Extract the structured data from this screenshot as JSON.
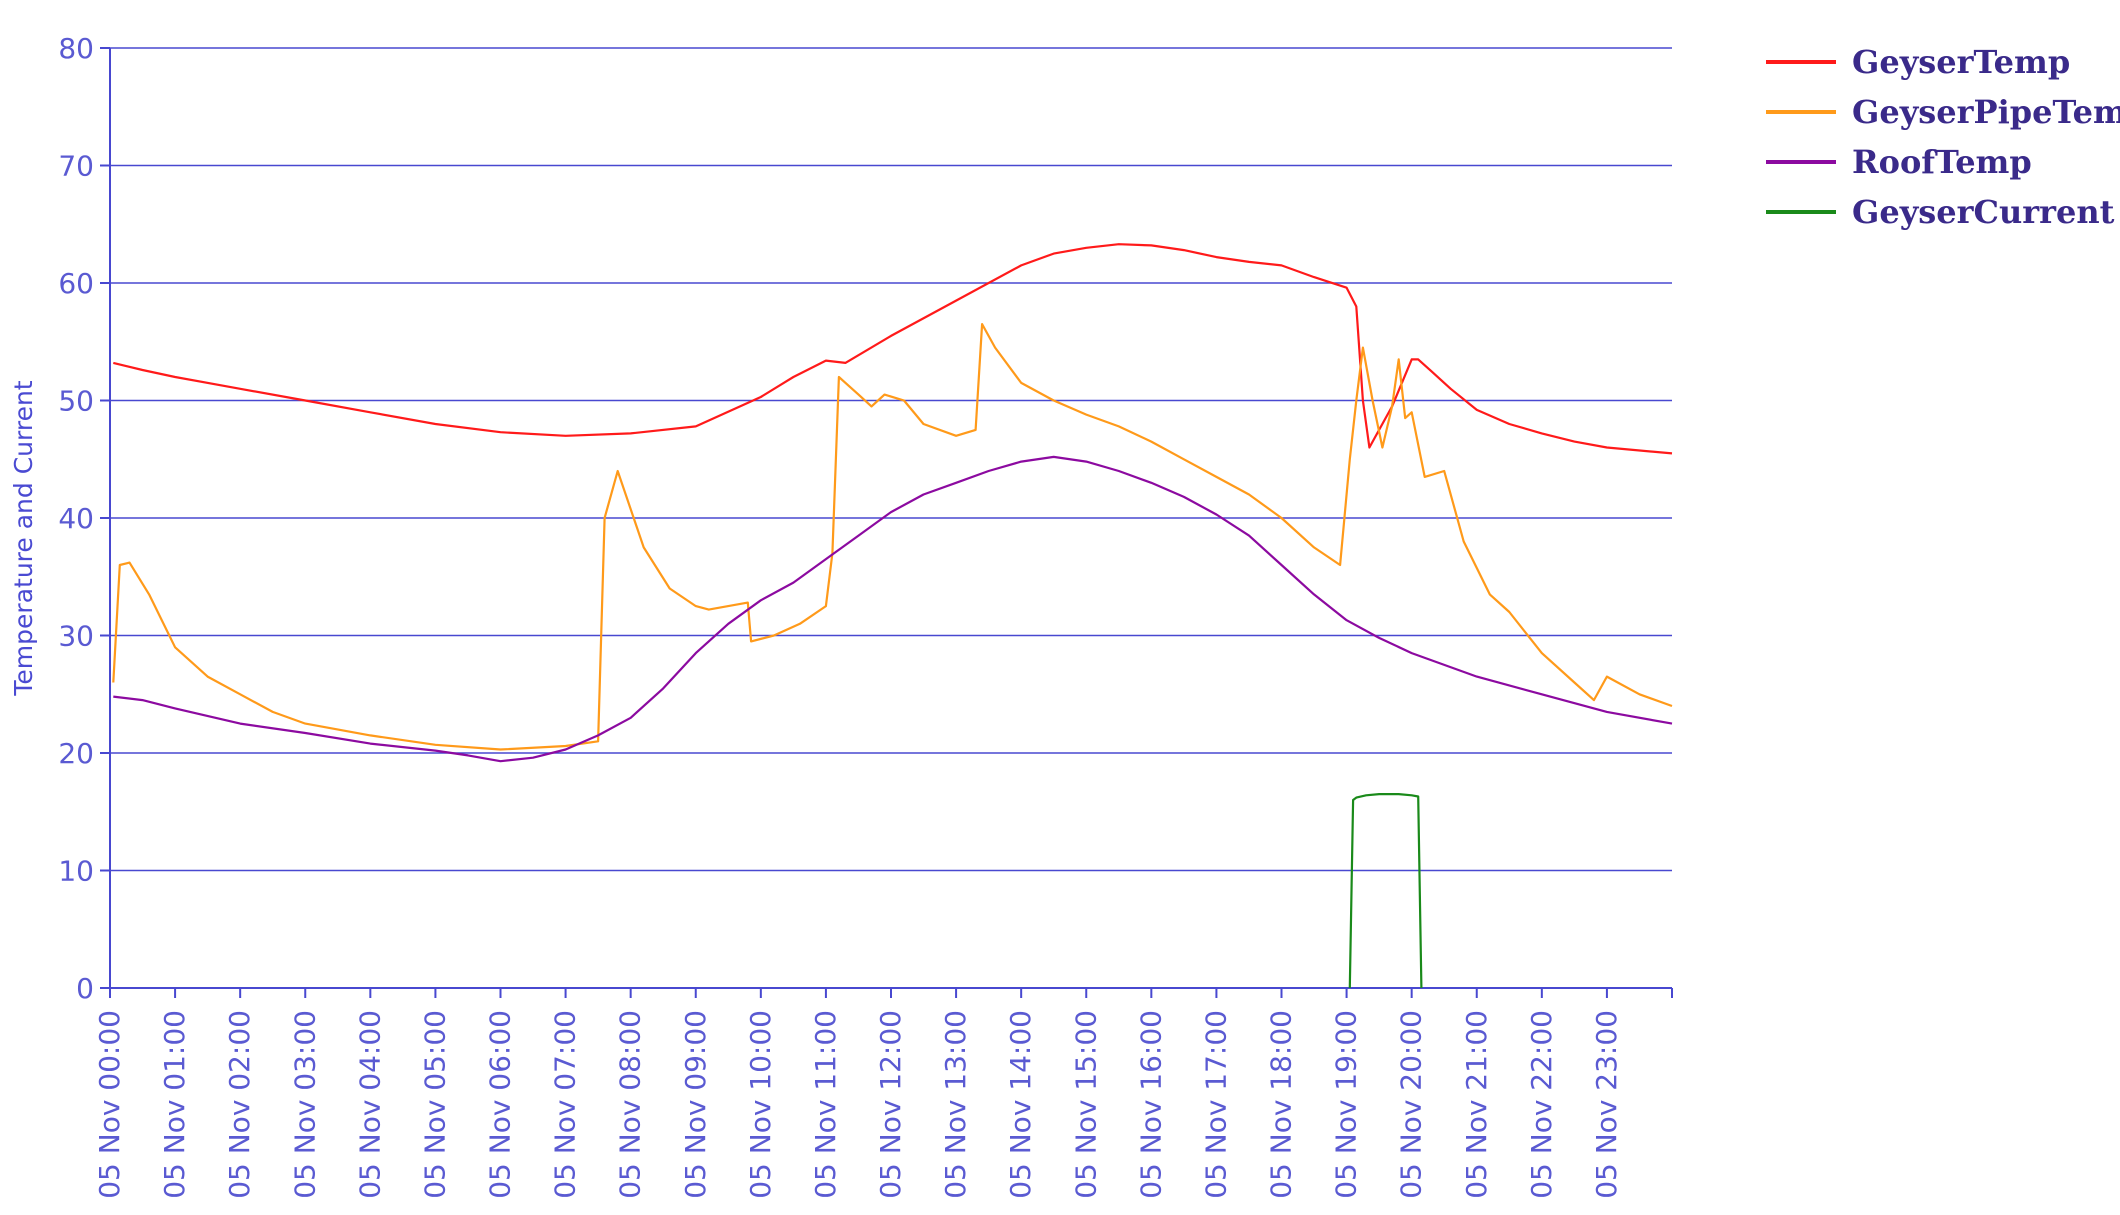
{
  "chart_data": {
    "type": "line",
    "title": "",
    "xlabel": "",
    "ylabel": "Temperature and Current",
    "ylim": [
      0,
      80
    ],
    "yticks": [
      0,
      10,
      20,
      30,
      40,
      50,
      60,
      70,
      80
    ],
    "xlim": [
      0,
      24
    ],
    "xticks": [
      0,
      1,
      2,
      3,
      4,
      5,
      6,
      7,
      8,
      9,
      10,
      11,
      12,
      13,
      14,
      15,
      16,
      17,
      18,
      19,
      20,
      21,
      22,
      23
    ],
    "xtick_labels": [
      "05 Nov 00:00",
      "05 Nov 01:00",
      "05 Nov 02:00",
      "05 Nov 03:00",
      "05 Nov 04:00",
      "05 Nov 05:00",
      "05 Nov 06:00",
      "05 Nov 07:00",
      "05 Nov 08:00",
      "05 Nov 09:00",
      "05 Nov 10:00",
      "05 Nov 11:00",
      "05 Nov 12:00",
      "05 Nov 13:00",
      "05 Nov 14:00",
      "05 Nov 15:00",
      "05 Nov 16:00",
      "05 Nov 17:00",
      "05 Nov 18:00",
      "05 Nov 19:00",
      "05 Nov 20:00",
      "05 Nov 21:00",
      "05 Nov 22:00",
      "05 Nov 23:00"
    ],
    "grid": true,
    "legend_position": "top-right",
    "series": [
      {
        "name": "GeyserTemp",
        "color": "#ff1a1a",
        "x": [
          0.05,
          0.5,
          1,
          2,
          3,
          4,
          5,
          6,
          7,
          8,
          9,
          10,
          10.5,
          11,
          11.3,
          12,
          13,
          14,
          14.5,
          15,
          15.5,
          16,
          16.5,
          17,
          17.5,
          18,
          18.5,
          19,
          19.15,
          19.25,
          19.35,
          19.5,
          19.7,
          19.85,
          20,
          20.1,
          20.3,
          20.6,
          21,
          21.5,
          22,
          22.5,
          23,
          24
        ],
        "y": [
          53.2,
          52.6,
          52,
          51,
          50,
          49,
          48,
          47.3,
          47,
          47.2,
          47.8,
          50.3,
          52,
          53.4,
          53.2,
          55.5,
          58.5,
          61.5,
          62.5,
          63,
          63.3,
          63.2,
          62.8,
          62.2,
          61.8,
          61.5,
          60.5,
          59.6,
          58,
          50,
          46,
          47.5,
          49.5,
          51.5,
          53.5,
          53.5,
          52.5,
          51,
          49.2,
          48,
          47.2,
          46.5,
          46,
          45.5
        ]
      },
      {
        "name": "GeyserPipeTemp",
        "color": "#ff9a1a",
        "x": [
          0.05,
          0.15,
          0.3,
          0.6,
          1,
          1.5,
          2,
          2.5,
          3,
          4,
          5,
          6,
          7,
          7.5,
          7.6,
          7.8,
          8.2,
          8.6,
          9,
          9.2,
          9.8,
          9.85,
          10.2,
          10.6,
          11,
          11.1,
          11.2,
          11.5,
          11.7,
          11.9,
          12.2,
          12.5,
          13,
          13.3,
          13.4,
          13.6,
          14,
          14.5,
          15,
          15.5,
          16,
          16.5,
          17,
          17.5,
          18,
          18.5,
          18.9,
          19.05,
          19.15,
          19.25,
          19.4,
          19.55,
          19.7,
          19.8,
          19.9,
          20,
          20.2,
          20.5,
          20.8,
          21.2,
          21.5,
          22,
          22.5,
          22.8,
          23,
          23.5,
          24
        ],
        "y": [
          26,
          36,
          36.2,
          33.5,
          29,
          26.5,
          25,
          23.5,
          22.5,
          21.5,
          20.7,
          20.3,
          20.6,
          21,
          40,
          44,
          37.5,
          34,
          32.5,
          32.2,
          32.8,
          29.5,
          30,
          31,
          32.5,
          37,
          52,
          50.5,
          49.5,
          50.5,
          50,
          48,
          47,
          47.5,
          56.5,
          54.5,
          51.5,
          50,
          48.8,
          47.8,
          46.5,
          45,
          43.5,
          42,
          40,
          37.5,
          36,
          45,
          50,
          54.5,
          50,
          46,
          49.5,
          53.5,
          48.5,
          49,
          43.5,
          44,
          38,
          33.5,
          32,
          28.5,
          26,
          24.5,
          26.5,
          25,
          24
        ]
      },
      {
        "name": "RoofTemp",
        "color": "#8c0aa0",
        "x": [
          0.05,
          0.5,
          1,
          2,
          3,
          4,
          5,
          5.5,
          6,
          6.5,
          7,
          7.5,
          8,
          8.5,
          9,
          9.5,
          10,
          10.5,
          11,
          11.5,
          12,
          12.5,
          13,
          13.5,
          14,
          14.5,
          15,
          15.5,
          16,
          16.5,
          17,
          17.5,
          18,
          18.5,
          19,
          19.5,
          20,
          21,
          22,
          23,
          24
        ],
        "y": [
          24.8,
          24.5,
          23.8,
          22.5,
          21.7,
          20.8,
          20.2,
          19.8,
          19.3,
          19.6,
          20.3,
          21.5,
          23,
          25.5,
          28.5,
          31,
          33,
          34.5,
          36.5,
          38.5,
          40.5,
          42,
          43,
          44,
          44.8,
          45.2,
          44.8,
          44,
          43,
          41.8,
          40.3,
          38.5,
          36,
          33.5,
          31.3,
          29.8,
          28.5,
          26.5,
          25,
          23.5,
          22.5
        ]
      },
      {
        "name": "GeyserCurrent",
        "color": "#1a8a1a",
        "x": [
          19.05,
          19.1,
          19.15,
          19.3,
          19.5,
          19.8,
          20,
          20.1,
          20.15
        ],
        "y": [
          0,
          16,
          16.2,
          16.4,
          16.5,
          16.5,
          16.4,
          16.3,
          0
        ]
      }
    ]
  }
}
